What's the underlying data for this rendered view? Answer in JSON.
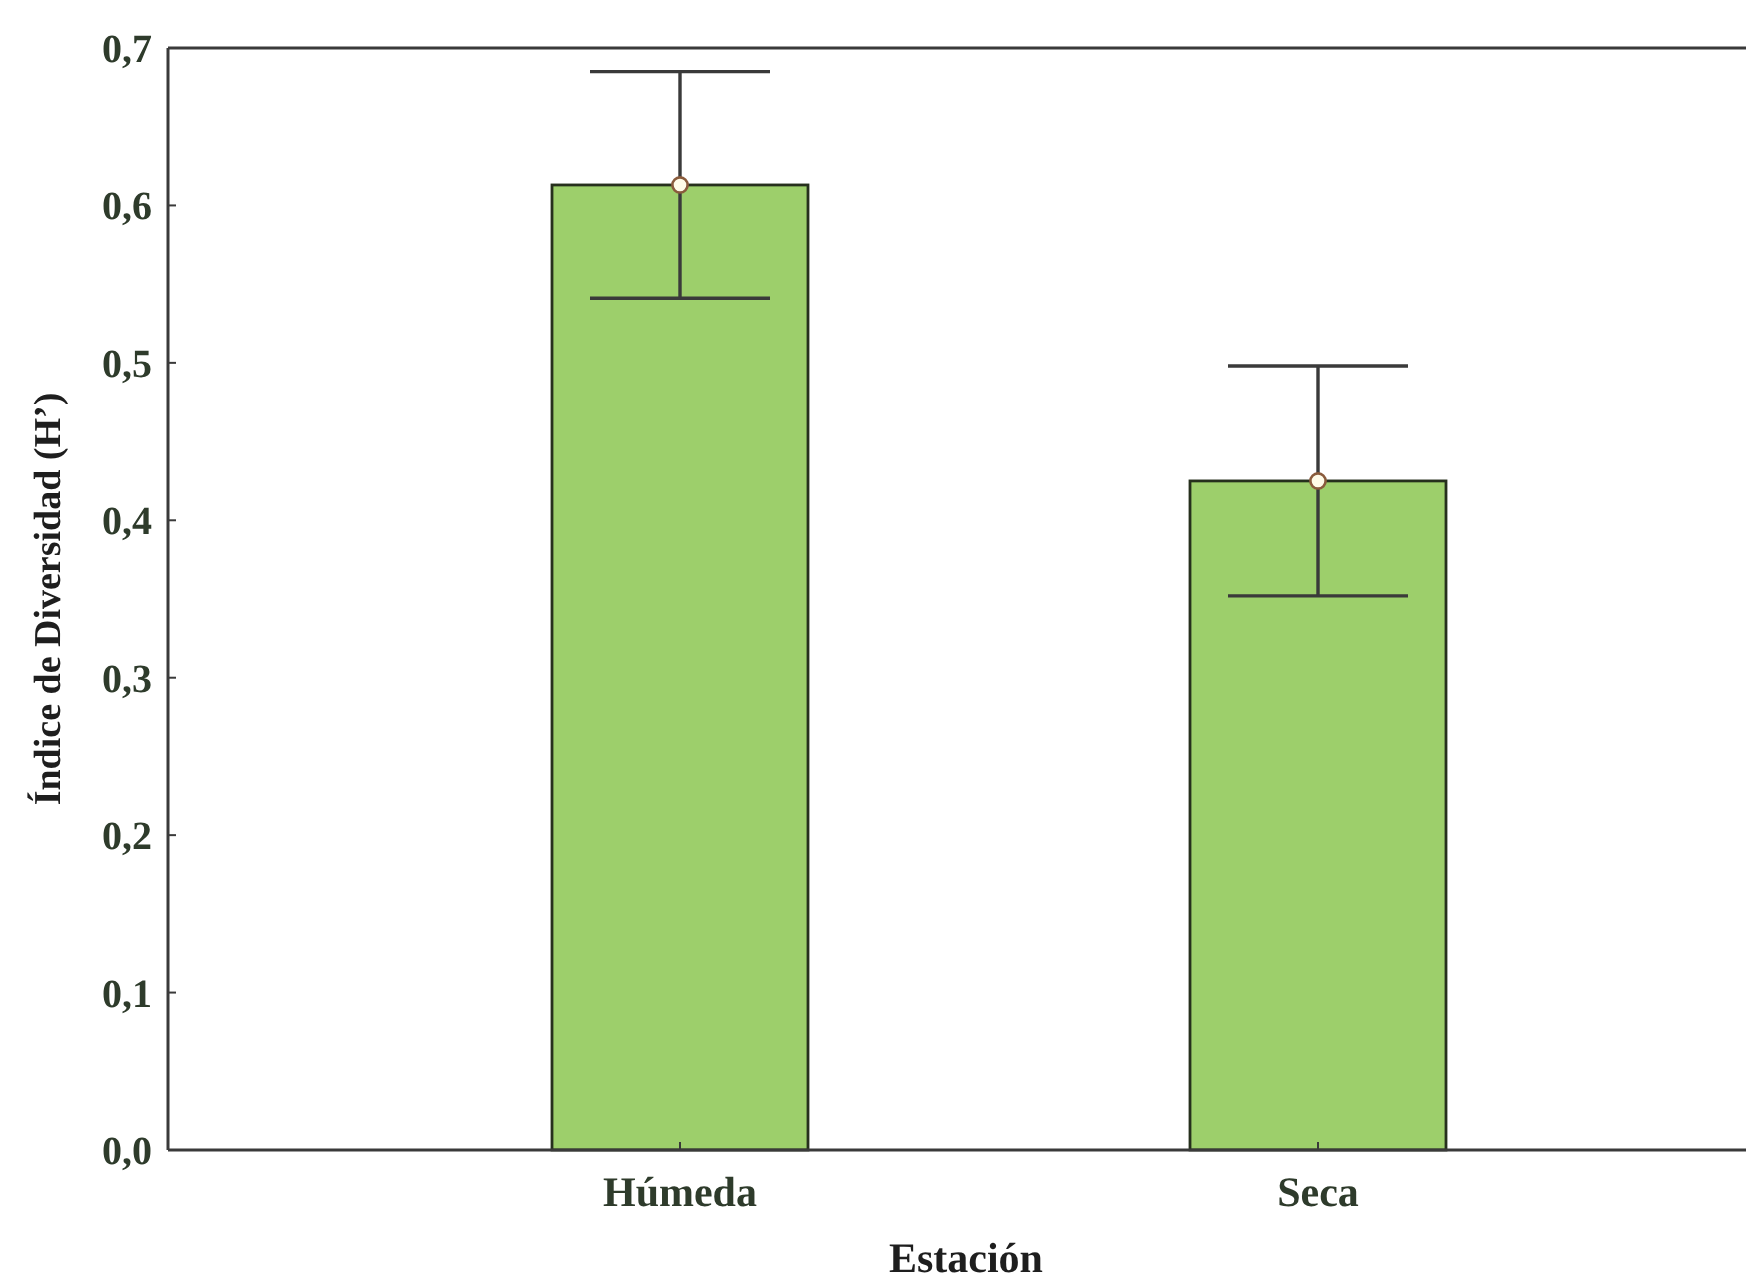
{
  "chart_data": {
    "type": "bar",
    "xlabel": "Estación",
    "ylabel": "Índice de Diversidad (H’)",
    "categories": [
      "Húmeda",
      "Seca"
    ],
    "series": [
      {
        "type": "bar",
        "color": "#9dcf6b",
        "values": [
          0.613,
          0.425
        ],
        "errors": [
          0.072,
          0.073
        ]
      },
      {
        "type": "scatter",
        "color": "#fffbe8",
        "marker": "circle",
        "x": [
          "Húmeda",
          "Seca"
        ],
        "values": [
          0.613,
          0.425
        ]
      }
    ],
    "ylim": [
      0,
      0.7
    ],
    "yticks": [
      {
        "value": 0,
        "label": "0,0"
      },
      {
        "value": 0.1,
        "label": "0,1"
      },
      {
        "value": 0.2,
        "label": "0,2"
      },
      {
        "value": 0.3,
        "label": "0,3"
      },
      {
        "value": 0.4,
        "label": "0,4"
      },
      {
        "value": 0.5,
        "label": "0,5"
      },
      {
        "value": 0.6,
        "label": "0,6"
      },
      {
        "value": 0.7,
        "label": "0,7"
      }
    ]
  }
}
